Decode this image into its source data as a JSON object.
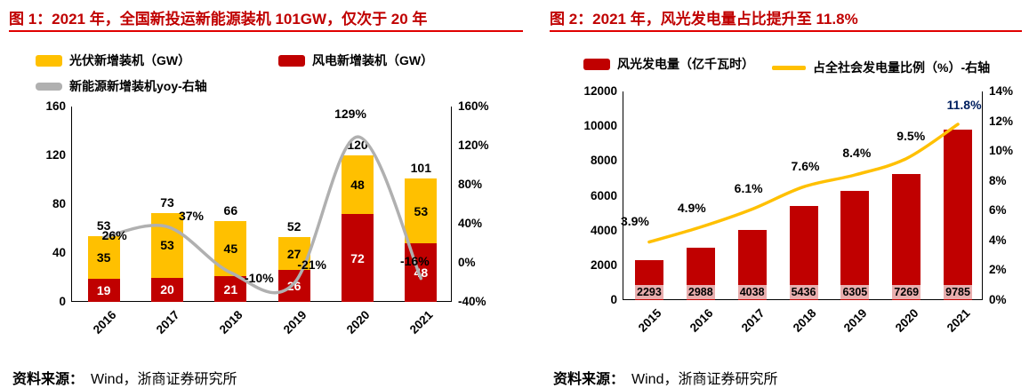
{
  "colors": {
    "accent_red": "#C00000",
    "bar_red": "#C00000",
    "bar_yellow": "#FFC000",
    "line_gray": "#B0B0B0",
    "line_yellow": "#FFC000",
    "highlight_navy": "#002060",
    "bar_label_band_pink": "#E8AEAE",
    "title_rule_red": "#E00000"
  },
  "source": {
    "label": "资料来源：",
    "text": "Wind，浙商证券研究所"
  },
  "chart_data": [
    {
      "id": "figure-1",
      "type": "bar",
      "subtype": "stacked-bar-with-line",
      "title": "图 1：2021 年，全国新投运新能源装机 101GW，仅次于 20 年",
      "categories": [
        "2016",
        "2017",
        "2018",
        "2019",
        "2020",
        "2021"
      ],
      "series": [
        {
          "name": "风电新增装机（GW）",
          "type": "bar",
          "color": "#C00000",
          "values": [
            19,
            20,
            21,
            26,
            72,
            48
          ]
        },
        {
          "name": "光伏新增装机（GW）",
          "type": "bar",
          "color": "#FFC000",
          "values": [
            35,
            53,
            45,
            27,
            48,
            53
          ]
        },
        {
          "name": "新能源新增装机yoy-右轴",
          "type": "line",
          "axis": "right",
          "color": "#B0B0B0",
          "values": [
            26,
            37,
            -10,
            -21,
            129,
            -16
          ],
          "labels": [
            "26%",
            "37%",
            "-10%",
            "-21%",
            "129%",
            "-16%"
          ]
        }
      ],
      "totals": [
        53,
        73,
        66,
        52,
        120,
        101
      ],
      "left_axis": {
        "min": 0,
        "max": 160,
        "step": 40,
        "ticks": [
          "0",
          "40",
          "80",
          "120",
          "160"
        ]
      },
      "right_axis": {
        "min": -40,
        "max": 160,
        "step": 40,
        "ticks": [
          "-40%",
          "0%",
          "40%",
          "80%",
          "120%",
          "160%"
        ]
      },
      "legend": [
        {
          "label": "光伏新增装机（GW）",
          "swatch": "bar",
          "color": "#FFC000"
        },
        {
          "label": "风电新增装机（GW）",
          "swatch": "bar",
          "color": "#C00000"
        },
        {
          "label": "新能源新增装机yoy-右轴",
          "swatch": "line",
          "color": "#B0B0B0"
        }
      ],
      "grid": false,
      "legend_position": "top"
    },
    {
      "id": "figure-2",
      "type": "bar",
      "subtype": "bar-with-line",
      "title": "图 2：2021 年，风光发电量占比提升至 11.8%",
      "categories": [
        "2015",
        "2016",
        "2017",
        "2018",
        "2019",
        "2020",
        "2021"
      ],
      "series": [
        {
          "name": "风光发电量（亿千瓦时）",
          "type": "bar",
          "color": "#C00000",
          "values": [
            2293,
            2988,
            4038,
            5436,
            6305,
            7269,
            9785
          ]
        },
        {
          "name": "占全社会发电量比例（%）-右轴",
          "type": "line",
          "axis": "right",
          "color": "#FFC000",
          "values": [
            3.9,
            4.9,
            6.1,
            7.6,
            8.4,
            9.5,
            11.8
          ],
          "labels": [
            "3.9%",
            "4.9%",
            "6.1%",
            "7.6%",
            "8.4%",
            "9.5%",
            "11.8%"
          ],
          "last_label_color": "#002060"
        }
      ],
      "left_axis": {
        "min": 0,
        "max": 12000,
        "step": 2000,
        "ticks": [
          "0",
          "2000",
          "4000",
          "6000",
          "8000",
          "10000",
          "12000"
        ]
      },
      "right_axis": {
        "min": 0,
        "max": 14,
        "step": 2,
        "ticks": [
          "0%",
          "2%",
          "4%",
          "6%",
          "8%",
          "10%",
          "12%",
          "14%"
        ]
      },
      "legend": [
        {
          "label": "风光发电量（亿千瓦时）",
          "swatch": "bar",
          "color": "#C00000"
        },
        {
          "label": "占全社会发电量比例（%）-右轴",
          "swatch": "line",
          "color": "#FFC000"
        }
      ],
      "grid": false,
      "legend_position": "top"
    }
  ]
}
